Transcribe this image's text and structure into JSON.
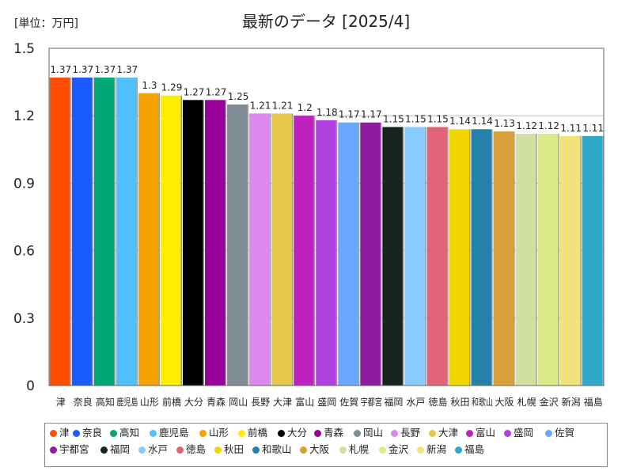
{
  "chart_data": {
    "type": "bar",
    "title": "最新のデータ [2025/4]",
    "unit_label": "[単位：万円]",
    "ylim": [
      0,
      1.5
    ],
    "yticks": [
      "0",
      "0.3",
      "0.6",
      "0.9",
      "1.2",
      "1.5"
    ],
    "grid": true,
    "legend_position": "bottom",
    "categories": [
      "津",
      "奈良",
      "高知",
      "鹿児島",
      "山形",
      "前橋",
      "大分",
      "青森",
      "岡山",
      "長野",
      "大津",
      "富山",
      "盛岡",
      "佐賀",
      "宇都宮",
      "福岡",
      "水戸",
      "徳島",
      "秋田",
      "和歌山",
      "大阪",
      "札幌",
      "金沢",
      "新潟",
      "福島"
    ],
    "xtick_labels": [
      "津",
      "奈良",
      "高知",
      "鹿児島",
      "山形",
      "前橋",
      "大分",
      "青森",
      "岡山",
      "長野",
      "大津",
      "富山",
      "盛岡",
      "佐賀",
      "宇都宮",
      "福岡",
      "水戸",
      "徳島",
      "秋田",
      "和歌山",
      "大阪",
      "札幌",
      "金沢",
      "新潟",
      "福島"
    ],
    "values": [
      1.37,
      1.37,
      1.37,
      1.37,
      1.3,
      1.29,
      1.27,
      1.27,
      1.25,
      1.21,
      1.21,
      1.2,
      1.18,
      1.17,
      1.17,
      1.15,
      1.15,
      1.15,
      1.14,
      1.14,
      1.13,
      1.12,
      1.12,
      1.11,
      1.11
    ],
    "value_labels": [
      "1.37",
      "1.37",
      "1.37",
      "1.37",
      "1.3",
      "1.29",
      "1.27",
      "1.27",
      "1.25",
      "1.21",
      "1.21",
      "1.2",
      "1.18",
      "1.17",
      "1.17",
      "1.15",
      "1.15",
      "1.15",
      "1.14",
      "1.14",
      "1.13",
      "1.12",
      "1.12",
      "1.11",
      "1.11"
    ],
    "colors": [
      "#ff4e00",
      "#1a5cff",
      "#00a875",
      "#50c0ff",
      "#f5a300",
      "#ffee00",
      "#000000",
      "#990099",
      "#7f8c94",
      "#dd88ee",
      "#e8c84a",
      "#c020c0",
      "#b040e0",
      "#6aa8ff",
      "#8e1aa0",
      "#16251d",
      "#88ccff",
      "#e06478",
      "#f0d500",
      "#2580aa",
      "#d8a038",
      "#d0e0a0",
      "#dcea88",
      "#f2e27a",
      "#30a8c8"
    ]
  }
}
